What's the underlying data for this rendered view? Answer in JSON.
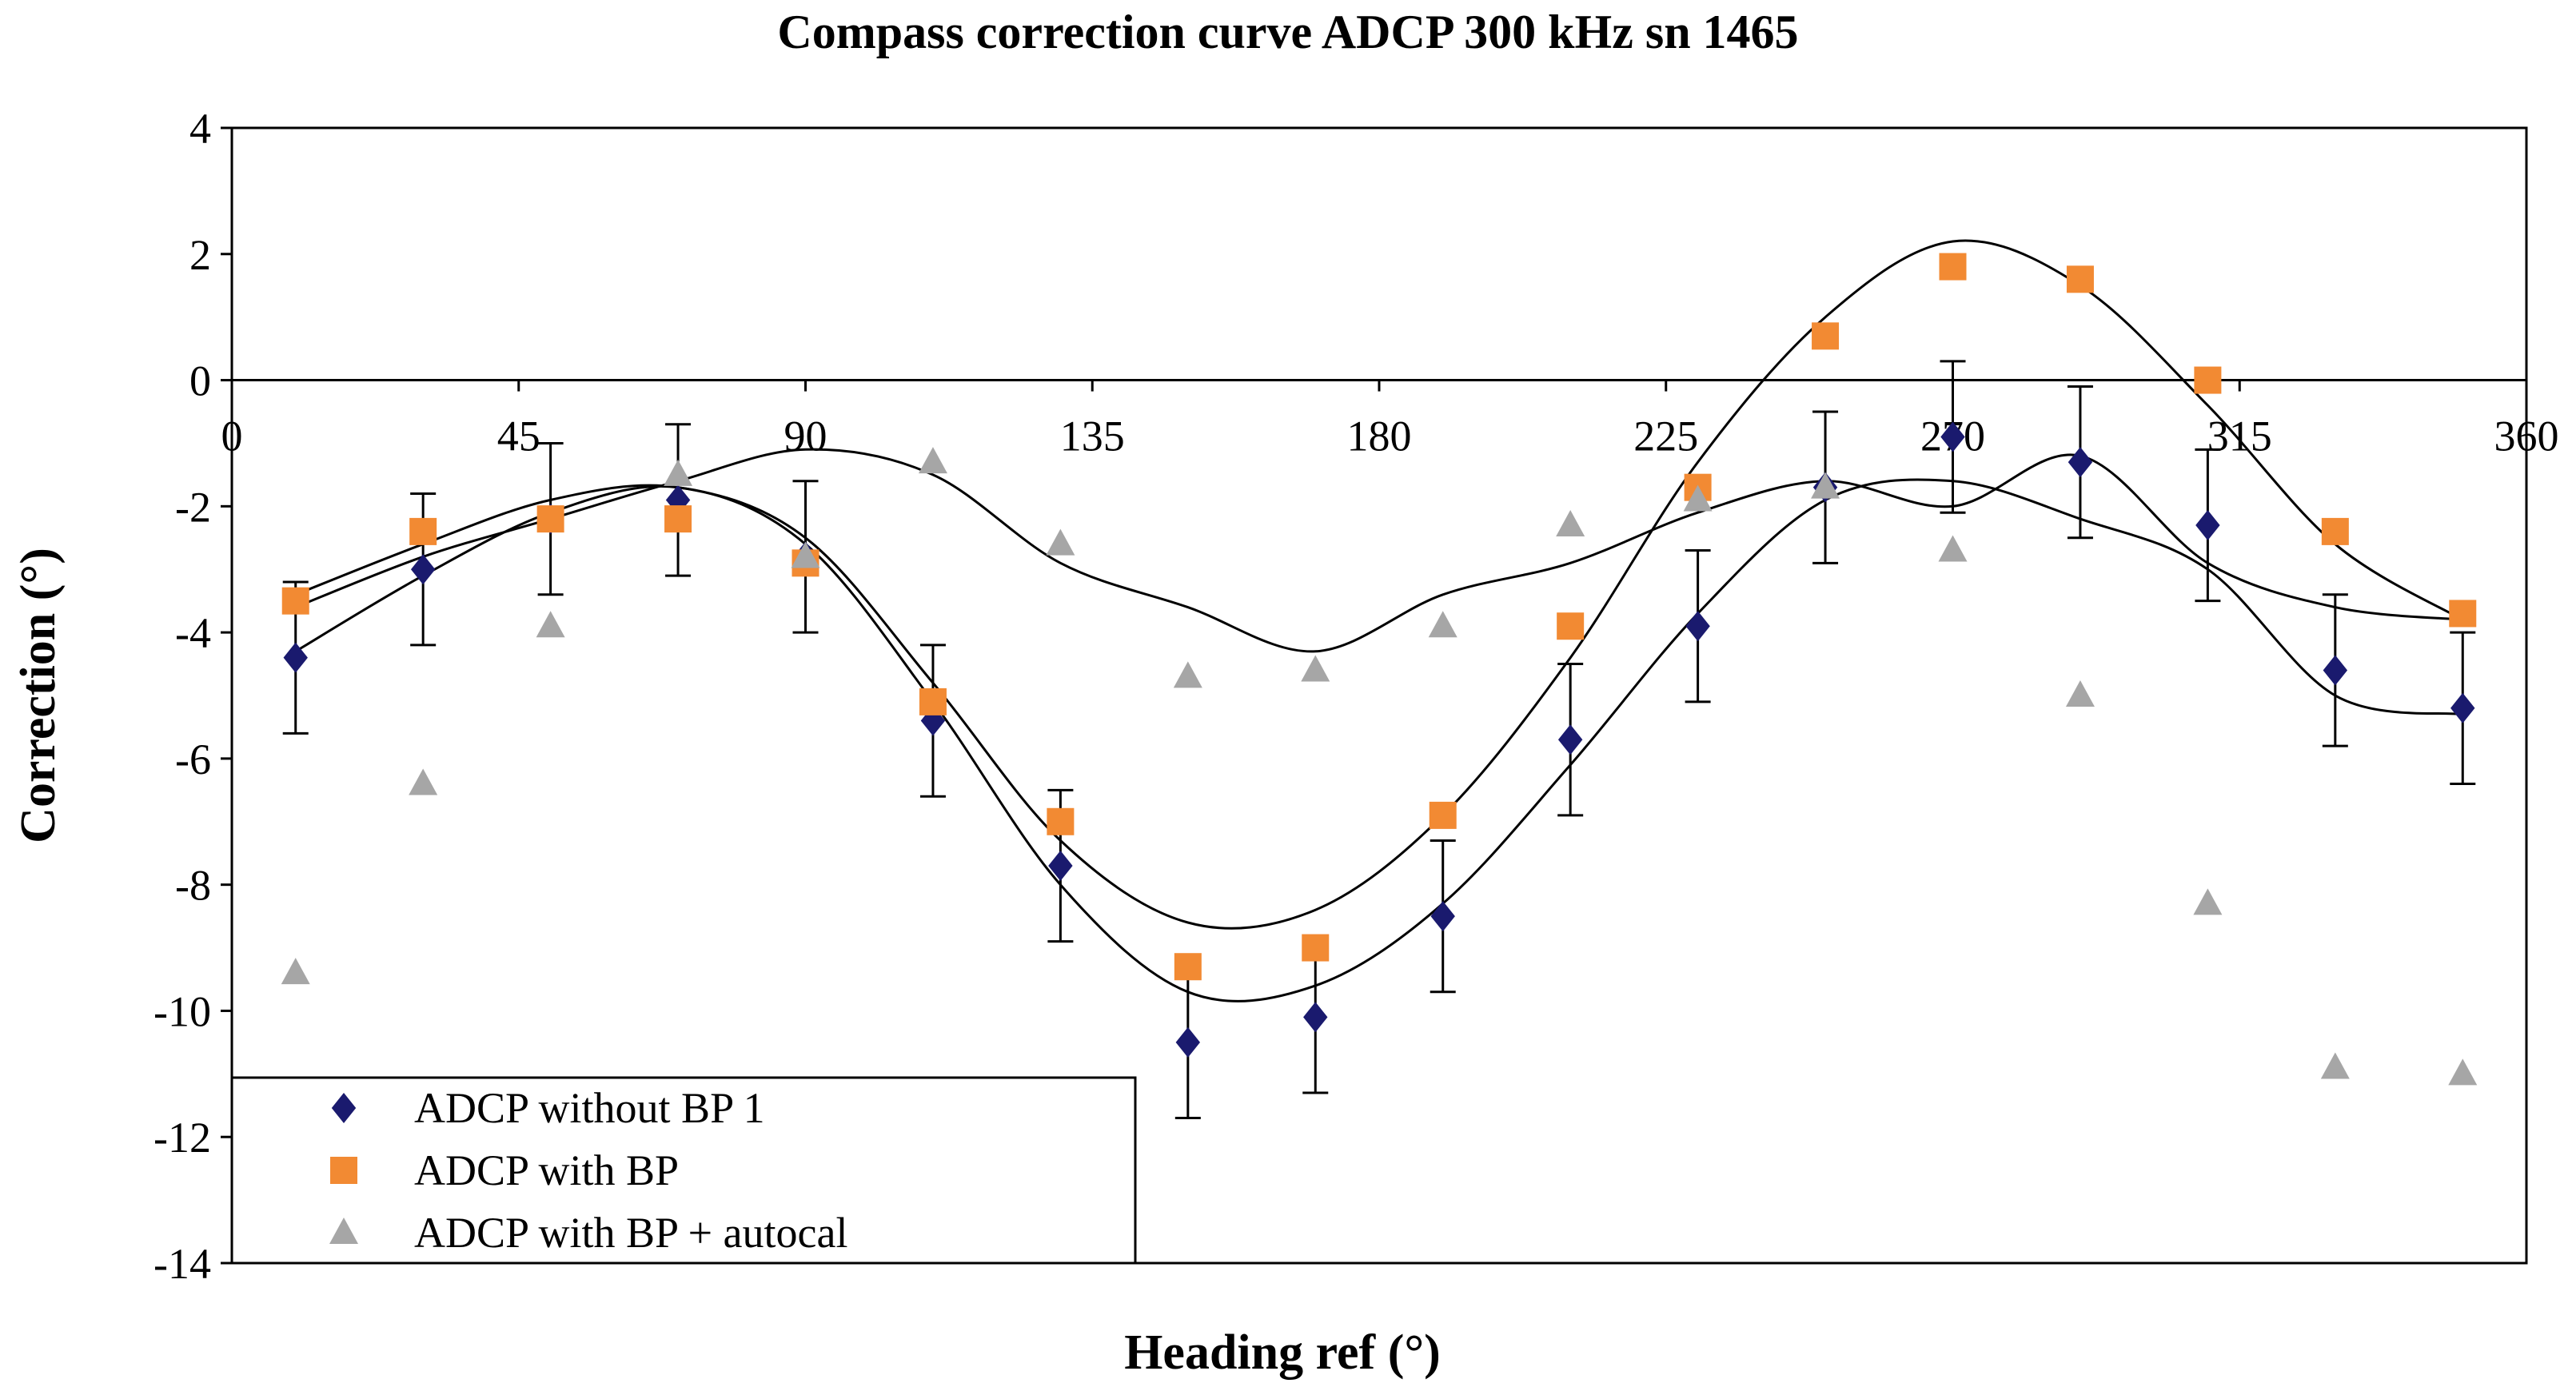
{
  "chart_data": {
    "type": "scatter",
    "title": "Compass correction curve ADCP 300 kHz sn 1465",
    "xlabel": "Heading ref (°)",
    "ylabel": "Correction (°)",
    "xlim": [
      0,
      360
    ],
    "ylim": [
      -14,
      4
    ],
    "xticks": [
      0,
      45,
      90,
      135,
      180,
      225,
      270,
      315,
      360
    ],
    "yticks": [
      4,
      2,
      0,
      -2,
      -4,
      -6,
      -8,
      -10,
      -12,
      -14
    ],
    "x": [
      10,
      30,
      50,
      70,
      90,
      110,
      130,
      150,
      170,
      190,
      210,
      230,
      250,
      270,
      290,
      310,
      330,
      350
    ],
    "error_bar": 1.2,
    "legend_position": "bottom-left",
    "series": [
      {
        "name": "ADCP without BP 1",
        "marker": "diamond",
        "color": "#1a1a6e",
        "error_bars": true,
        "values": [
          -4.4,
          -3.0,
          -2.2,
          -1.9,
          -2.8,
          -5.4,
          -7.7,
          -10.5,
          -10.1,
          -8.5,
          -5.7,
          -3.9,
          -1.7,
          -0.9,
          -1.3,
          -2.3,
          -4.6,
          -5.2
        ],
        "fit": [
          -4.3,
          -3.1,
          -2.1,
          -1.7,
          -2.6,
          -5.1,
          -8.0,
          -9.7,
          -9.6,
          -8.3,
          -6.1,
          -3.7,
          -1.9,
          -1.6,
          -2.2,
          -3.0,
          -5.0,
          -5.3
        ]
      },
      {
        "name": "ADCP with BP",
        "marker": "square",
        "color": "#f28a33",
        "error_bars": false,
        "values": [
          -3.5,
          -2.4,
          -2.2,
          -2.2,
          -2.9,
          -5.1,
          -7.0,
          -9.3,
          -9.0,
          -6.9,
          -3.9,
          -1.7,
          0.7,
          1.8,
          1.6,
          0.0,
          -2.4,
          -3.7
        ],
        "fit": [
          -3.4,
          -2.6,
          -1.9,
          -1.7,
          -2.5,
          -4.8,
          -7.3,
          -8.6,
          -8.4,
          -6.9,
          -4.4,
          -1.3,
          1.0,
          2.2,
          1.5,
          -0.4,
          -2.6,
          -3.8
        ]
      },
      {
        "name": "ADCP with BP + autocal",
        "marker": "triangle",
        "color": "#a6a6a6",
        "error_bars": false,
        "values": [
          -9.4,
          -6.4,
          -3.9,
          -1.5,
          -2.8,
          -1.3,
          -2.6,
          -4.7,
          -4.6,
          -3.9,
          -2.3,
          -1.9,
          -1.7,
          -2.7,
          -5.0,
          -8.3,
          -10.9,
          -11.0
        ],
        "fit": [
          -3.6,
          -2.8,
          -2.2,
          -1.6,
          -1.1,
          -1.5,
          -2.9,
          -3.6,
          -4.3,
          -3.4,
          -2.9,
          -2.1,
          -1.6,
          -2.0,
          -1.2,
          -2.9,
          -3.6,
          -3.8
        ]
      }
    ]
  }
}
